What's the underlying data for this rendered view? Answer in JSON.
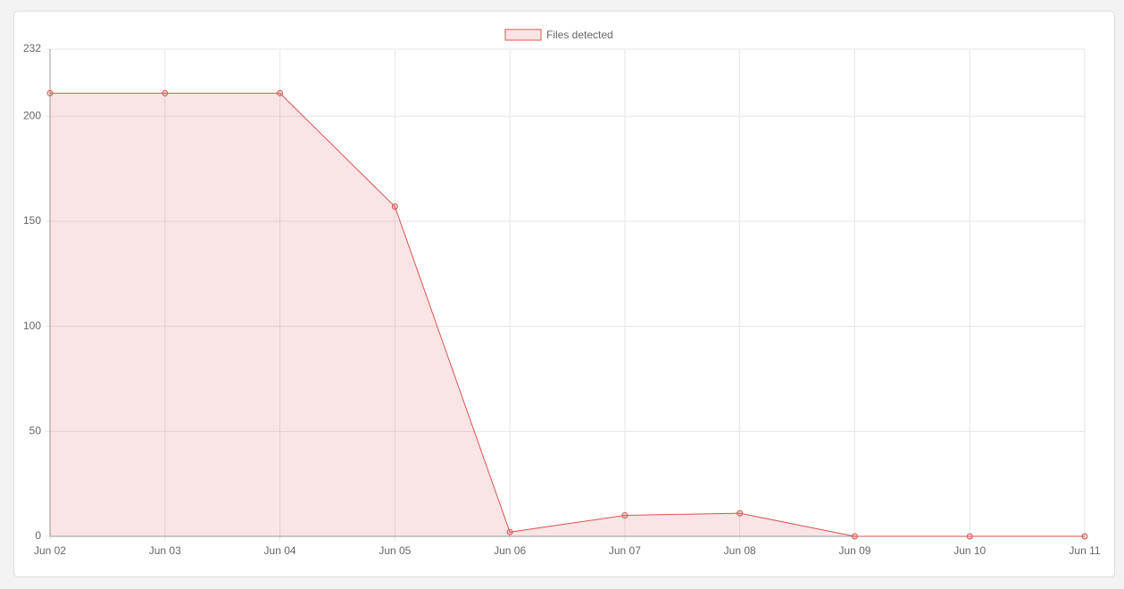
{
  "chart_data": {
    "type": "line",
    "categories": [
      "Jun 02",
      "Jun 03",
      "Jun 04",
      "Jun 05",
      "Jun 06",
      "Jun 07",
      "Jun 08",
      "Jun 09",
      "Jun 10",
      "Jun 11"
    ],
    "series": [
      {
        "name": "Files detected",
        "color": "#d9534f",
        "values": [
          211,
          211,
          211,
          157,
          2,
          10,
          11,
          0,
          0,
          0
        ]
      }
    ],
    "fill": true,
    "ylim": [
      0,
      232
    ],
    "yticks": [
      0,
      50,
      100,
      150,
      200,
      232
    ],
    "grid": true,
    "legend": "top"
  }
}
